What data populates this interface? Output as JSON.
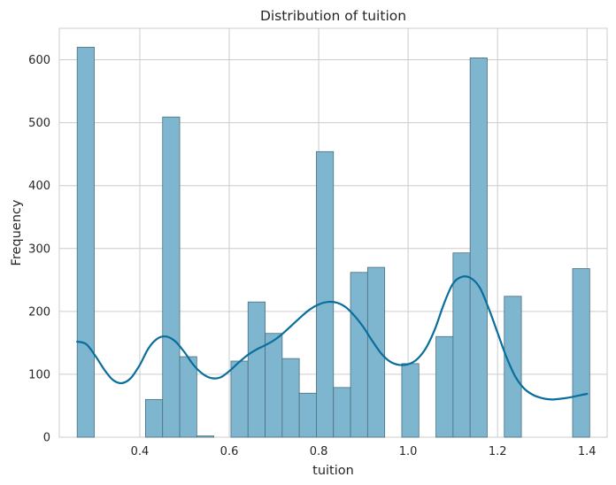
{
  "chart_data": {
    "type": "bar",
    "title": "Distribution of tuition",
    "xlabel": "tuition",
    "ylabel": "Frequency",
    "xlim": [
      0.22,
      1.445
    ],
    "ylim": [
      0,
      650
    ],
    "xticks": [
      0.4,
      0.6,
      0.8,
      1.0,
      1.2,
      1.4
    ],
    "xtick_labels": [
      "0.4",
      "0.6",
      "0.8",
      "1.0",
      "1.2",
      "1.4"
    ],
    "yticks": [
      0,
      100,
      200,
      300,
      400,
      500,
      600
    ],
    "ytick_labels": [
      "0",
      "100",
      "200",
      "300",
      "400",
      "500",
      "600"
    ],
    "grid": true,
    "bar_color": "#7fb6cf",
    "bar_edge_color": "#4a6f7f",
    "kde_color": "#0a6e9c",
    "bins": [
      {
        "x0": 0.26,
        "x1": 0.2982,
        "count": 620
      },
      {
        "x0": 0.2982,
        "x1": 0.3364,
        "count": 0
      },
      {
        "x0": 0.3364,
        "x1": 0.3746,
        "count": 0
      },
      {
        "x0": 0.3746,
        "x1": 0.4128,
        "count": 0
      },
      {
        "x0": 0.4128,
        "x1": 0.451,
        "count": 60
      },
      {
        "x0": 0.451,
        "x1": 0.4892,
        "count": 509
      },
      {
        "x0": 0.4892,
        "x1": 0.5274,
        "count": 128
      },
      {
        "x0": 0.5274,
        "x1": 0.5656,
        "count": 2
      },
      {
        "x0": 0.5656,
        "x1": 0.6038,
        "count": 0
      },
      {
        "x0": 0.6038,
        "x1": 0.642,
        "count": 121
      },
      {
        "x0": 0.642,
        "x1": 0.6802,
        "count": 215
      },
      {
        "x0": 0.6802,
        "x1": 0.7184,
        "count": 165
      },
      {
        "x0": 0.7184,
        "x1": 0.7566,
        "count": 125
      },
      {
        "x0": 0.7566,
        "x1": 0.7948,
        "count": 70
      },
      {
        "x0": 0.7948,
        "x1": 0.833,
        "count": 454
      },
      {
        "x0": 0.833,
        "x1": 0.8712,
        "count": 79
      },
      {
        "x0": 0.8712,
        "x1": 0.9094,
        "count": 262
      },
      {
        "x0": 0.9094,
        "x1": 0.9476,
        "count": 270
      },
      {
        "x0": 0.9476,
        "x1": 0.9858,
        "count": 0
      },
      {
        "x0": 0.9858,
        "x1": 1.024,
        "count": 117
      },
      {
        "x0": 1.024,
        "x1": 1.0622,
        "count": 0
      },
      {
        "x0": 1.0622,
        "x1": 1.1004,
        "count": 160
      },
      {
        "x0": 1.1004,
        "x1": 1.1386,
        "count": 293
      },
      {
        "x0": 1.1386,
        "x1": 1.1768,
        "count": 603
      },
      {
        "x0": 1.1768,
        "x1": 1.215,
        "count": 0
      },
      {
        "x0": 1.215,
        "x1": 1.2532,
        "count": 224
      },
      {
        "x0": 1.2532,
        "x1": 1.2914,
        "count": 0
      },
      {
        "x0": 1.2914,
        "x1": 1.3296,
        "count": 0
      },
      {
        "x0": 1.3296,
        "x1": 1.3678,
        "count": 0
      },
      {
        "x0": 1.3678,
        "x1": 1.406,
        "count": 268
      }
    ],
    "kde": {
      "x": [
        0.26,
        0.28,
        0.3,
        0.32,
        0.34,
        0.36,
        0.38,
        0.4,
        0.42,
        0.44,
        0.46,
        0.48,
        0.5,
        0.52,
        0.54,
        0.56,
        0.58,
        0.6,
        0.62,
        0.64,
        0.66,
        0.68,
        0.7,
        0.72,
        0.74,
        0.76,
        0.78,
        0.8,
        0.82,
        0.84,
        0.86,
        0.88,
        0.9,
        0.92,
        0.94,
        0.96,
        0.98,
        1.0,
        1.02,
        1.04,
        1.06,
        1.08,
        1.1,
        1.12,
        1.14,
        1.16,
        1.18,
        1.2,
        1.22,
        1.24,
        1.26,
        1.28,
        1.3,
        1.32,
        1.34,
        1.36,
        1.38,
        1.4
      ],
      "y": [
        152,
        148,
        130,
        108,
        91,
        86,
        94,
        115,
        142,
        157,
        160,
        152,
        135,
        115,
        101,
        94,
        95,
        105,
        118,
        130,
        139,
        146,
        154,
        165,
        178,
        191,
        203,
        211,
        215,
        214,
        207,
        193,
        175,
        153,
        133,
        120,
        115,
        116,
        124,
        142,
        172,
        212,
        244,
        255,
        253,
        238,
        205,
        166,
        127,
        96,
        77,
        67,
        62,
        60,
        61,
        63,
        66,
        69
      ]
    }
  }
}
